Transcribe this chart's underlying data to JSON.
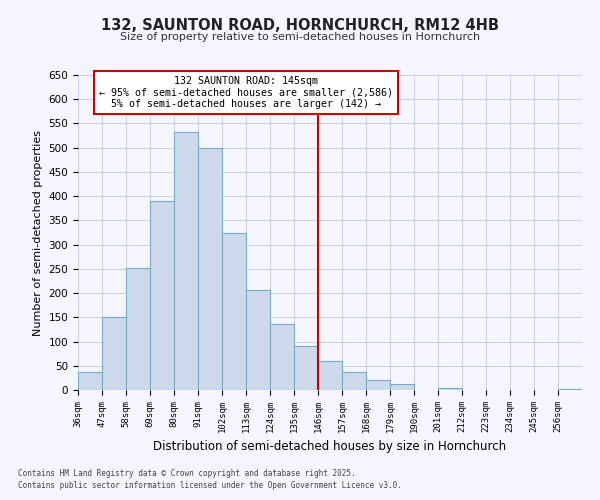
{
  "title": "132, SAUNTON ROAD, HORNCHURCH, RM12 4HB",
  "subtitle": "Size of property relative to semi-detached houses in Hornchurch",
  "xlabel": "Distribution of semi-detached houses by size in Hornchurch",
  "ylabel": "Number of semi-detached properties",
  "bin_labels": [
    "36sqm",
    "47sqm",
    "58sqm",
    "69sqm",
    "80sqm",
    "91sqm",
    "102sqm",
    "113sqm",
    "124sqm",
    "135sqm",
    "146sqm",
    "157sqm",
    "168sqm",
    "179sqm",
    "190sqm",
    "201sqm",
    "212sqm",
    "223sqm",
    "234sqm",
    "245sqm",
    "256sqm"
  ],
  "bin_edges": [
    36,
    47,
    58,
    69,
    80,
    91,
    102,
    113,
    124,
    135,
    146,
    157,
    168,
    179,
    190,
    201,
    212,
    223,
    234,
    245,
    256
  ],
  "bar_heights": [
    37,
    150,
    252,
    390,
    532,
    500,
    325,
    207,
    137,
    90,
    60,
    38,
    20,
    13,
    0,
    5,
    0,
    0,
    0,
    0,
    3
  ],
  "bar_color": "#ccdaeb",
  "bar_edge_color": "#7aaac8",
  "vline_x": 146,
  "vline_color": "#cc0000",
  "ylim": [
    0,
    650
  ],
  "yticks": [
    0,
    50,
    100,
    150,
    200,
    250,
    300,
    350,
    400,
    450,
    500,
    550,
    600,
    650
  ],
  "annotation_title": "132 SAUNTON ROAD: 145sqm",
  "annotation_line1": "← 95% of semi-detached houses are smaller (2,586)",
  "annotation_line2": "5% of semi-detached houses are larger (142) →",
  "annotation_box_color": "#ffffff",
  "annotation_box_edge": "#cc0000",
  "footer1": "Contains HM Land Registry data © Crown copyright and database right 2025.",
  "footer2": "Contains public sector information licensed under the Open Government Licence v3.0.",
  "bg_color": "#f5f5ff",
  "grid_color": "#c8cfe0"
}
